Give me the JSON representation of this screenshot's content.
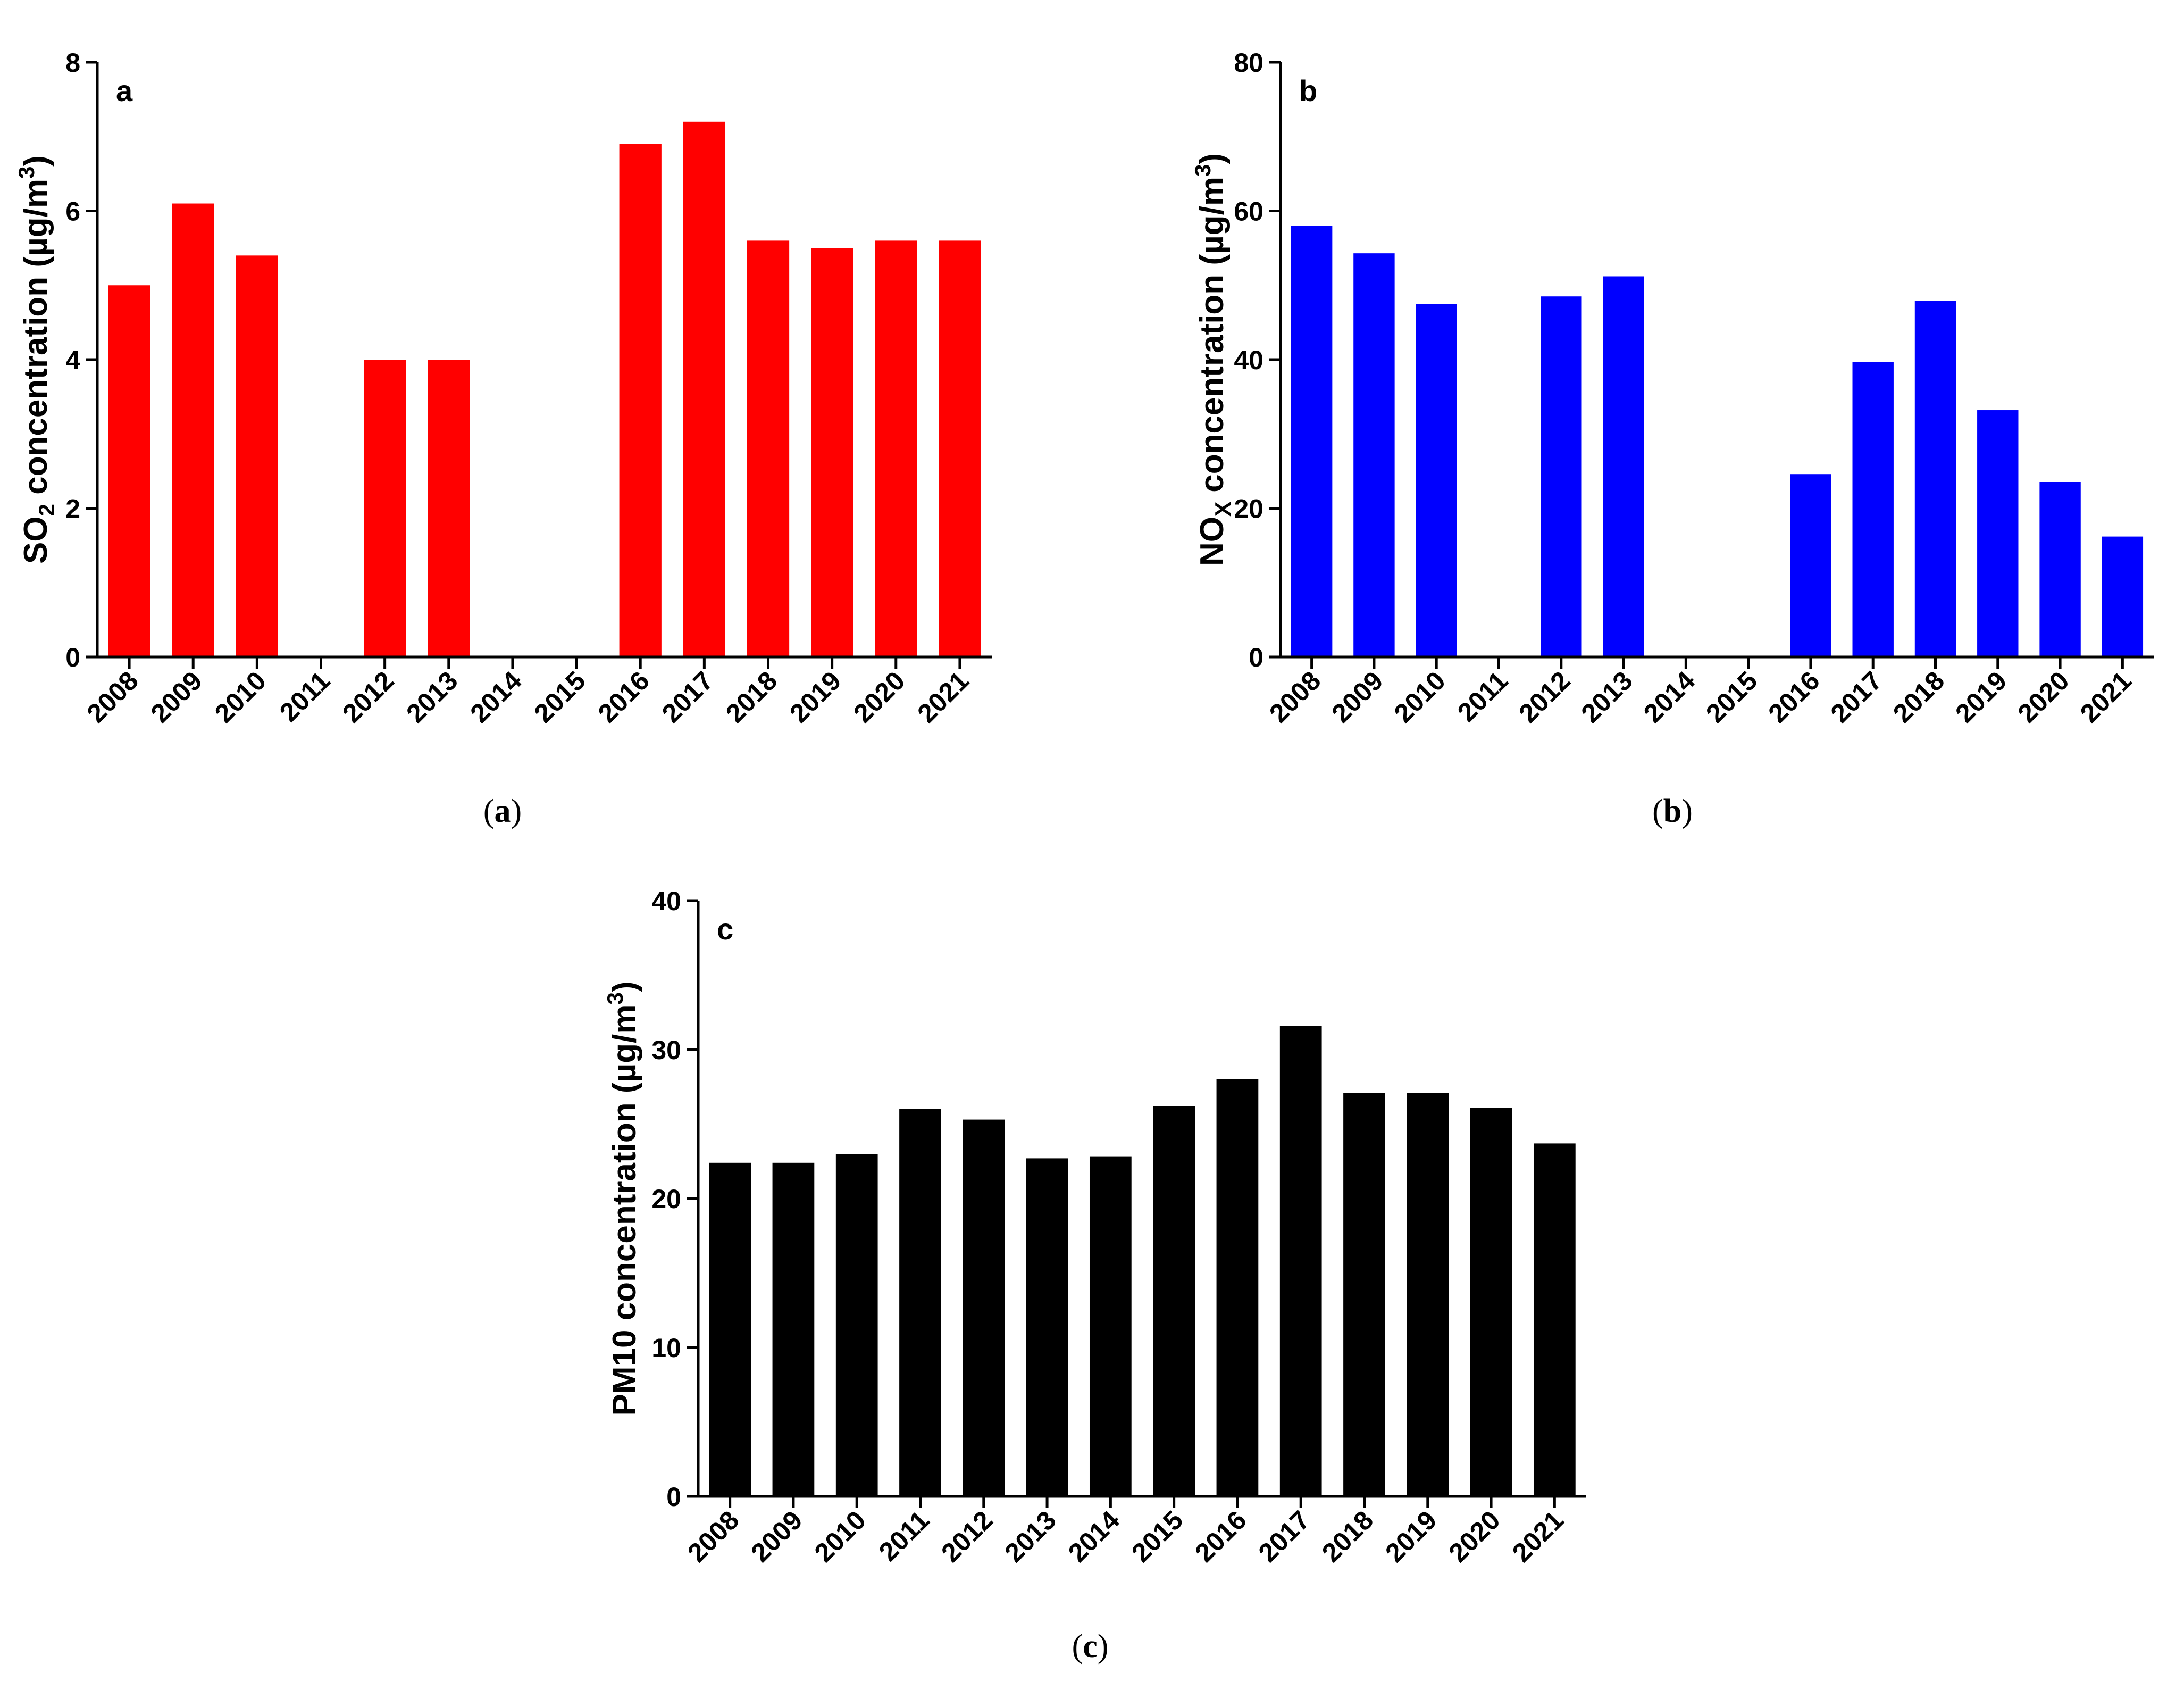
{
  "chart_data": [
    {
      "type": "bar",
      "panel_label": "a",
      "caption": {
        "open": "(",
        "letter": "a",
        "close": ")"
      },
      "categories": [
        "2008",
        "2009",
        "2010",
        "2011",
        "2012",
        "2013",
        "2014",
        "2015",
        "2016",
        "2017",
        "2018",
        "2019",
        "2020",
        "2021"
      ],
      "values": [
        5.0,
        6.1,
        5.4,
        null,
        4.0,
        4.0,
        null,
        null,
        6.9,
        7.2,
        5.6,
        5.5,
        5.6,
        5.6
      ],
      "ylim": [
        0,
        8
      ],
      "yticks": [
        0,
        2,
        4,
        6,
        8
      ],
      "ylabel": {
        "pre": "SO",
        "sub": "2",
        "mid": " concentration (µg/m",
        "sup": "3",
        "post": ")"
      },
      "xlabel": "",
      "color": "#ff0000"
    },
    {
      "type": "bar",
      "panel_label": "b",
      "caption": {
        "open": "(",
        "letter": "b",
        "close": ")"
      },
      "categories": [
        "2008",
        "2009",
        "2010",
        "2011",
        "2012",
        "2013",
        "2014",
        "2015",
        "2016",
        "2017",
        "2018",
        "2019",
        "2020",
        "2021"
      ],
      "values": [
        58.0,
        54.3,
        47.5,
        null,
        48.5,
        51.2,
        null,
        null,
        24.6,
        39.7,
        47.9,
        33.2,
        23.5,
        16.2
      ],
      "ylim": [
        0,
        80
      ],
      "yticks": [
        0,
        20,
        40,
        60,
        80
      ],
      "ylabel": {
        "pre": "NO",
        "sub": "X",
        "mid": " concentration (µg/m",
        "sup": "3",
        "post": ")"
      },
      "xlabel": "",
      "color": "#0000ff"
    },
    {
      "type": "bar",
      "panel_label": "c",
      "caption": {
        "open": "(",
        "letter": "c",
        "close": ")"
      },
      "categories": [
        "2008",
        "2009",
        "2010",
        "2011",
        "2012",
        "2013",
        "2014",
        "2015",
        "2016",
        "2017",
        "2018",
        "2019",
        "2020",
        "2021"
      ],
      "values": [
        22.4,
        22.4,
        23.0,
        26.0,
        25.3,
        22.7,
        22.8,
        26.2,
        28.0,
        31.6,
        27.1,
        27.1,
        26.1,
        23.7
      ],
      "ylim": [
        0,
        40
      ],
      "yticks": [
        0,
        10,
        20,
        30,
        40
      ],
      "ylabel": {
        "pre": "PM10 concentration (µg/m",
        "sub": "",
        "mid": "",
        "sup": "3",
        "post": ")"
      },
      "xlabel": "",
      "color": "#000000"
    }
  ]
}
